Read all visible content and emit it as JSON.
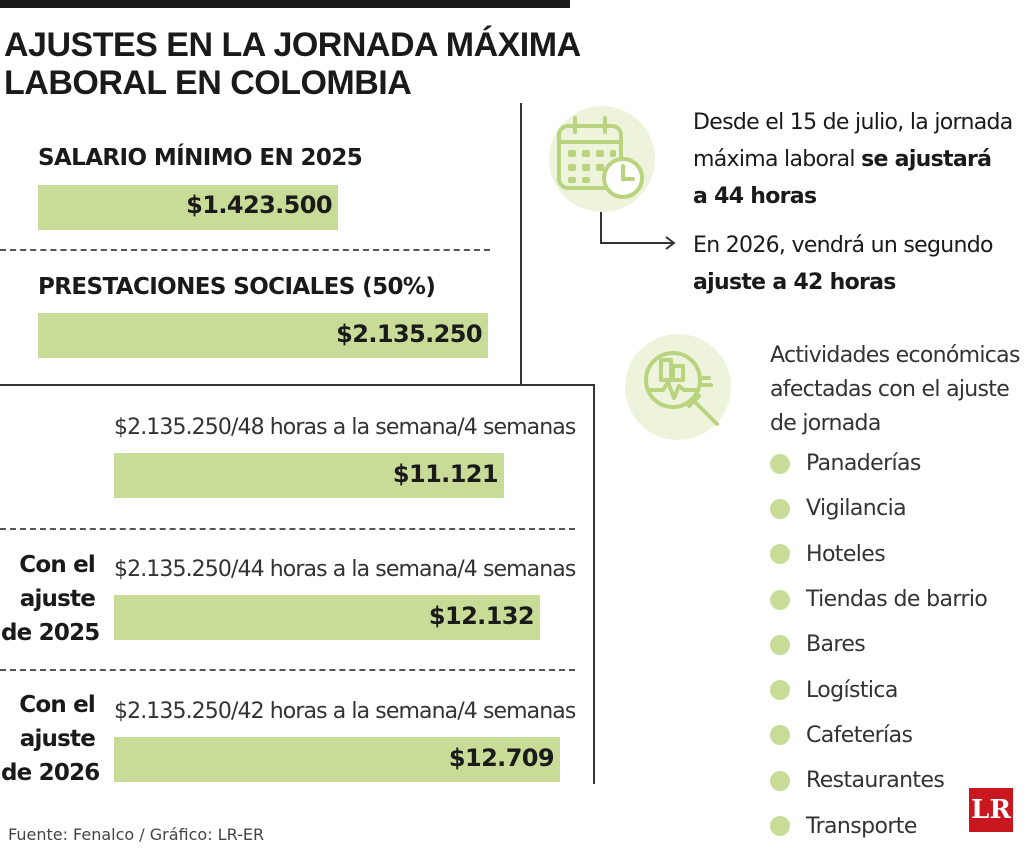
{
  "title": {
    "line1": "AJUSTES EN LA JORNADA MÁXIMA",
    "line2": "LABORAL EN COLOMBIA"
  },
  "colors": {
    "bar": "#c8db97",
    "icon_bg": "#eef3dc",
    "logo": "#c8171e",
    "text": "#1a1a1a"
  },
  "sections": [
    {
      "title": "SALARIO MÍNIMO EN 2025",
      "value_label": "$1.423.500"
    },
    {
      "title": "PRESTACIONES SOCIALES (50%)",
      "value_label": "$2.135.250"
    }
  ],
  "chart_data": {
    "type": "bar",
    "orientation": "horizontal",
    "categories": [
      "SALARIO MÍNIMO EN 2025",
      "PRESTACIONES SOCIALES (50%)",
      "$2.135.250/48 horas a la semana/4 semanas",
      "$2.135.250/44 horas a la semana/4 semanas",
      "$2.135.250/42 horas a la semana/4 semanas"
    ],
    "values": [
      1423500,
      2135250,
      11121,
      12132,
      12709
    ],
    "value_labels": [
      "$1.423.500",
      "$2.135.250",
      "$11.121",
      "$12.132",
      "$12.709"
    ]
  },
  "calc_rows": [
    {
      "row_label": [],
      "formula": "$2.135.250/48 horas a la semana/4 semanas",
      "value_label": "$11.121"
    },
    {
      "row_label": [
        "Con el",
        "ajuste",
        "de 2025"
      ],
      "formula": "$2.135.250/44 horas a la semana/4 semanas",
      "value_label": "$12.132"
    },
    {
      "row_label": [
        "Con el",
        "ajuste",
        "de 2026"
      ],
      "formula": "$2.135.250/42 horas a la semana/4 semanas",
      "value_label": "$12.709"
    }
  ],
  "info": {
    "icon": "calendar-clock-icon",
    "p1": {
      "line1": "Desde el 15 de julio, la jornada",
      "line2_regular": "máxima laboral ",
      "line2_bold": "se ajustará",
      "line3_bold": "a 44 horas"
    },
    "p2": {
      "line1": "En 2026, vendrá un segundo",
      "line2_bold": "ajuste a 42 horas"
    }
  },
  "activities": {
    "icon": "magnifier-chart-icon",
    "title": [
      "Actividades económicas",
      "afectadas con el ajuste",
      "de jornada"
    ],
    "items": [
      "Panaderías",
      "Vigilancia",
      "Hoteles",
      "Tiendas de barrio",
      "Bares",
      "Logística",
      "Cafeterías",
      "Restaurantes",
      "Transporte"
    ]
  },
  "source": "Fuente: Fenalco / Gráfico: LR-ER",
  "logo": "LR"
}
